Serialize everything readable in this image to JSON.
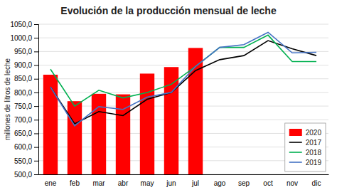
{
  "chart_data": {
    "type": "bar",
    "title": "Evolución de la producción mensual de leche",
    "ylabel": "millones de litros de leche",
    "categories": [
      "ene",
      "feb",
      "mar",
      "abr",
      "may",
      "jun",
      "jul",
      "ago",
      "sep",
      "oct",
      "nov",
      "dic"
    ],
    "series": [
      {
        "name": "2020",
        "type": "bar",
        "color": "#ff0000",
        "values": [
          865,
          768,
          795,
          793,
          869,
          893,
          963,
          null,
          null,
          null,
          null,
          null
        ]
      },
      {
        "name": "2017",
        "type": "line",
        "color": "#000000",
        "values": [
          820,
          685,
          730,
          715,
          775,
          800,
          880,
          920,
          935,
          990,
          960,
          935
        ]
      },
      {
        "name": "2018",
        "type": "line",
        "color": "#00b050",
        "values": [
          885,
          750,
          808,
          780,
          800,
          830,
          895,
          965,
          965,
          1010,
          913,
          913
        ]
      },
      {
        "name": "2019",
        "type": "line",
        "color": "#4472c4",
        "values": [
          820,
          678,
          748,
          738,
          783,
          800,
          895,
          965,
          975,
          1020,
          945,
          947
        ]
      }
    ],
    "ylim": [
      500,
      1050
    ],
    "yticks": [
      {
        "value": 500,
        "label": "500,0"
      },
      {
        "value": 550,
        "label": "550,0"
      },
      {
        "value": 600,
        "label": "600,0"
      },
      {
        "value": 650,
        "label": "650,0"
      },
      {
        "value": 700,
        "label": "700,0"
      },
      {
        "value": 750,
        "label": "750,0"
      },
      {
        "value": 800,
        "label": "800,0"
      },
      {
        "value": 850,
        "label": "850,0"
      },
      {
        "value": 900,
        "label": "900,0"
      },
      {
        "value": 950,
        "label": "950,0"
      },
      {
        "value": 1000,
        "label": "1000,0"
      },
      {
        "value": 1050,
        "label": "1050,0"
      }
    ],
    "grid": true,
    "legend": "lower right"
  }
}
